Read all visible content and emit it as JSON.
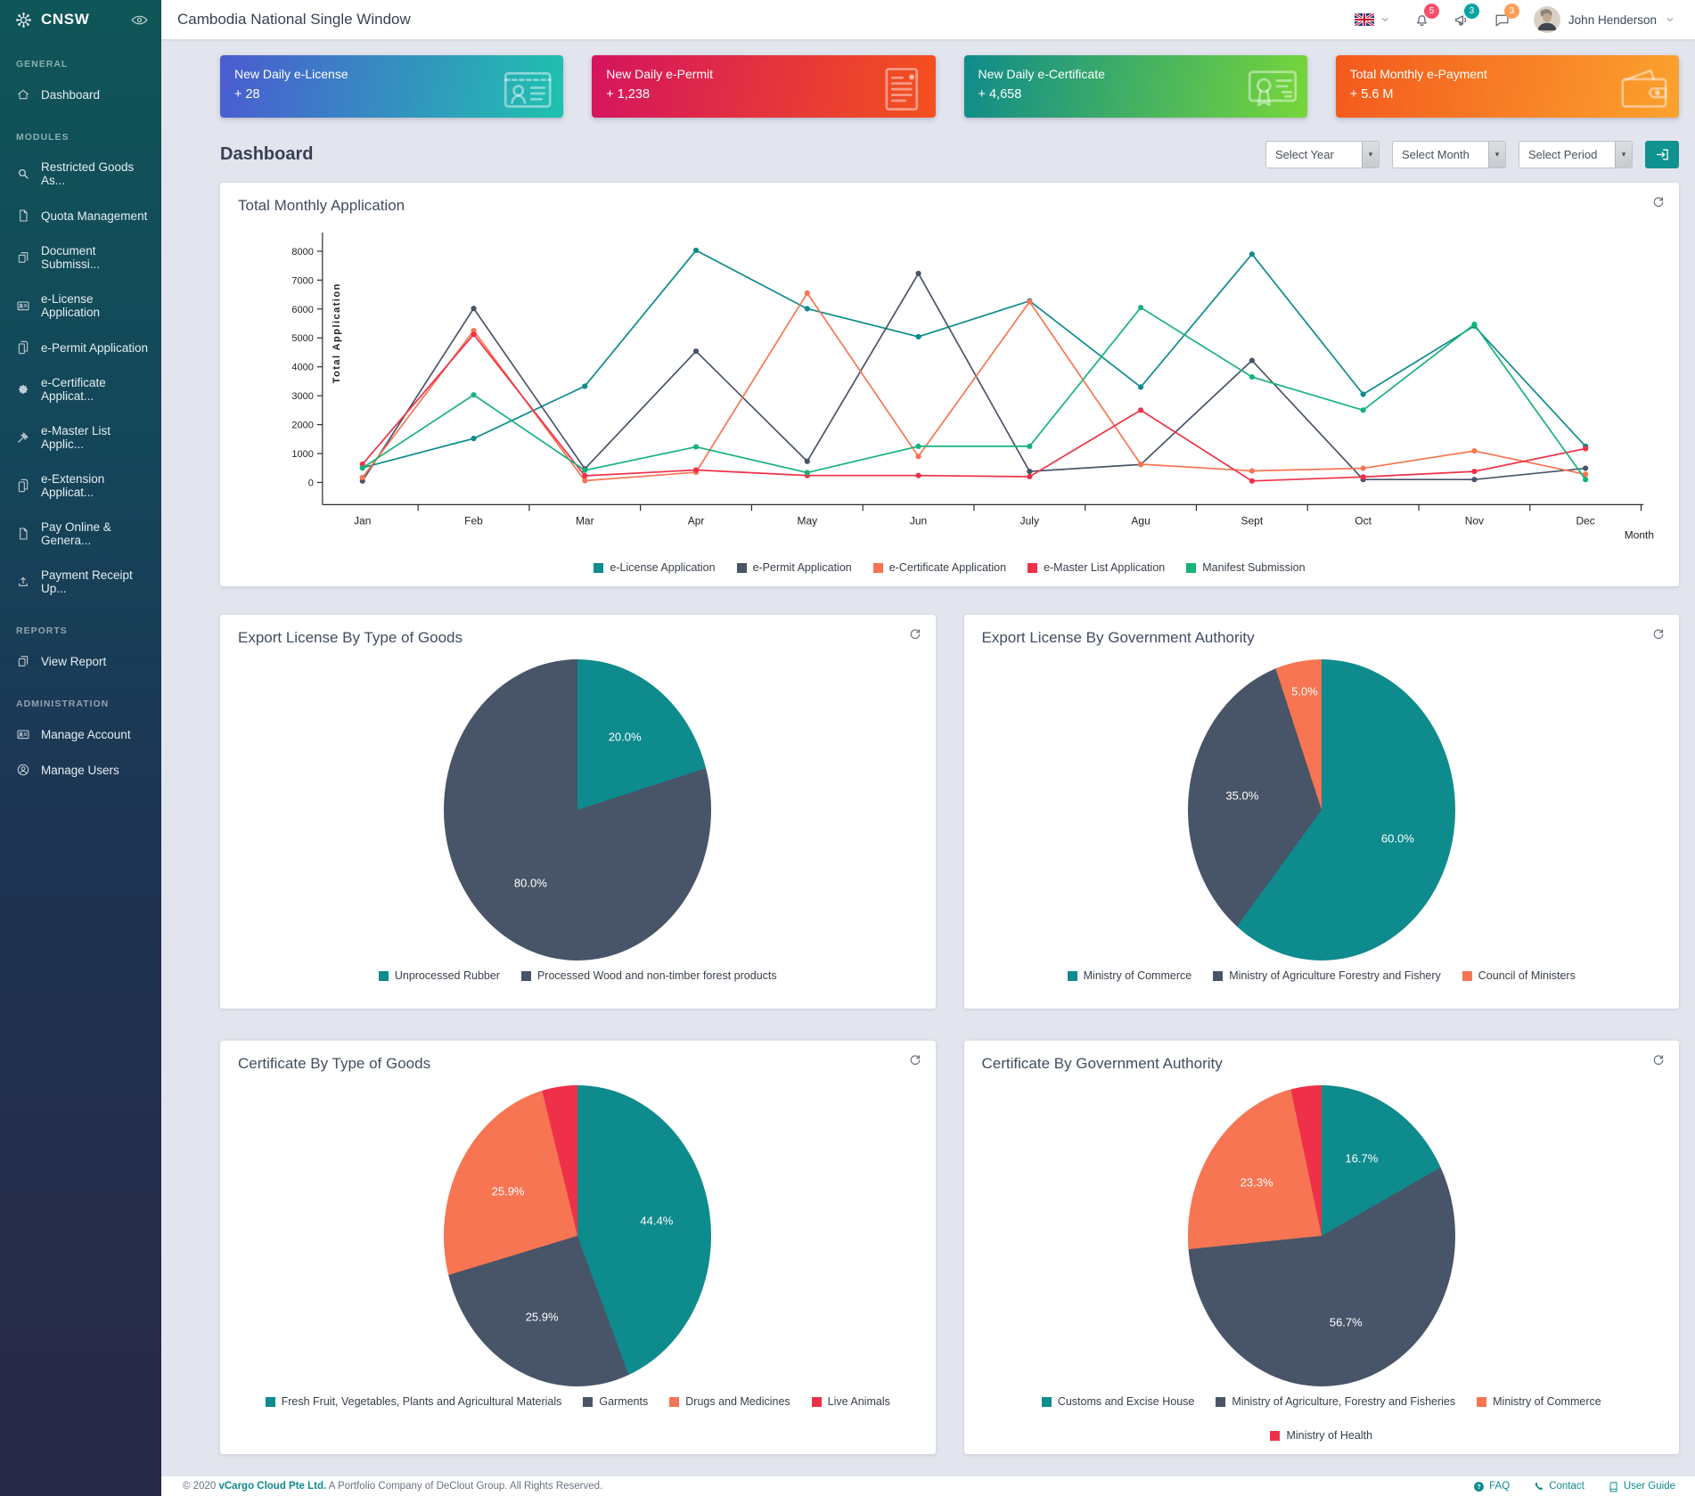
{
  "app": {
    "brand": "CNSW",
    "title": "Cambodia National Single Window",
    "user": "John Henderson"
  },
  "topbar": {
    "badges": {
      "notifications": "5",
      "announcements": "3",
      "messages": "3"
    }
  },
  "sidebar": {
    "sections": [
      {
        "label": "GENERAL",
        "items": [
          {
            "icon": "home-icon",
            "label": "Dashboard"
          }
        ]
      },
      {
        "label": "MODULES",
        "items": [
          {
            "icon": "search-icon",
            "label": "Restricted Goods As..."
          },
          {
            "icon": "file-icon",
            "label": "Quota Management"
          },
          {
            "icon": "copy-icon",
            "label": "Document Submissi..."
          },
          {
            "icon": "id-card-icon",
            "label": "e-License Application"
          },
          {
            "icon": "file-badge-icon",
            "label": "e-Permit Application"
          },
          {
            "icon": "seal-icon",
            "label": "e-Certificate Applicat..."
          },
          {
            "icon": "gavel-icon",
            "label": "e-Master List Applic..."
          },
          {
            "icon": "file-badge-icon",
            "label": "e-Extension Applicat..."
          },
          {
            "icon": "file-icon",
            "label": "Pay Online & Genera..."
          },
          {
            "icon": "upload-icon",
            "label": "Payment Receipt Up..."
          }
        ]
      },
      {
        "label": "REPORTS",
        "items": [
          {
            "icon": "copy-icon",
            "label": "View Report"
          }
        ]
      },
      {
        "label": "ADMINISTRATION",
        "items": [
          {
            "icon": "id-card-icon",
            "label": "Manage Account"
          },
          {
            "icon": "user-circle-icon",
            "label": "Manage Users"
          }
        ]
      }
    ]
  },
  "cards": [
    {
      "title": "New Daily e-License",
      "value": "+ 28",
      "icon": "license-card-icon",
      "gradient": {
        "from": "#4b5bd2",
        "to": "#1fc2ae"
      }
    },
    {
      "title": "New Daily e-Permit",
      "value": "+ 1,238",
      "icon": "permit-doc-icon",
      "gradient": {
        "from": "#d4145f",
        "to": "#f4511e"
      }
    },
    {
      "title": "New Daily e-Certificate",
      "value": "+ 4,658",
      "icon": "certificate-icon",
      "gradient": {
        "from": "#0f8b8b",
        "to": "#77d63a"
      }
    },
    {
      "title": "Total Monthly e-Payment",
      "value": "+ 5.6 M",
      "icon": "wallet-icon",
      "gradient": {
        "from": "#f4591d",
        "to": "#fba22e"
      }
    }
  ],
  "page": {
    "heading": "Dashboard"
  },
  "filters": {
    "year": "Select Year",
    "month": "Select Month",
    "period": "Select Period"
  },
  "chart_data": [
    {
      "type": "line",
      "title": "Total Monthly Application",
      "xlabel": "Month",
      "ylabel": "Total Application",
      "ylim": [
        0,
        8000
      ],
      "yticks": [
        0,
        1000,
        2000,
        3000,
        4000,
        5000,
        6000,
        7000,
        8000
      ],
      "categories": [
        "Jan",
        "Feb",
        "Mar",
        "Apr",
        "May",
        "Jun",
        "July",
        "Agu",
        "Sept",
        "Oct",
        "Nov",
        "Dec"
      ],
      "series": [
        {
          "name": "e-License Application",
          "color": "#0e8b8d",
          "values": [
            510,
            1520,
            3330,
            8030,
            6010,
            5040,
            6280,
            3300,
            7900,
            3050,
            5410,
            1250
          ]
        },
        {
          "name": "e-Permit Application",
          "color": "#485468",
          "values": [
            50,
            6020,
            470,
            4540,
            730,
            7230,
            380,
            620,
            4220,
            100,
            100,
            490
          ]
        },
        {
          "name": "e-Certificate Application",
          "color": "#f77552",
          "values": [
            170,
            5250,
            60,
            350,
            6550,
            900,
            6250,
            630,
            400,
            490,
            1090,
            280
          ]
        },
        {
          "name": "e-Master List Application",
          "color": "#ee3148",
          "values": [
            630,
            5120,
            230,
            430,
            240,
            240,
            200,
            2500,
            50,
            190,
            380,
            1170
          ]
        },
        {
          "name": "Manifest Submission",
          "color": "#16b378",
          "values": [
            500,
            3030,
            420,
            1230,
            340,
            1250,
            1250,
            6050,
            3650,
            2500,
            5470,
            100
          ]
        }
      ]
    },
    {
      "type": "pie",
      "title": "Export License By Type of Goods",
      "slices": [
        {
          "label": "Unprocessed Rubber",
          "value": 20.0,
          "text": "20.0%",
          "color": "#0e8b8d"
        },
        {
          "label": "Processed Wood and non-timber forest products",
          "value": 80.0,
          "text": "80.0%",
          "color": "#485468"
        }
      ]
    },
    {
      "type": "pie",
      "title": "Export License By Government Authority",
      "slices": [
        {
          "label": "Ministry of Commerce",
          "value": 60.0,
          "text": "60.0%",
          "color": "#0e8b8d"
        },
        {
          "label": "Ministry of Agriculture Forestry and Fishery",
          "value": 35.0,
          "text": "35.0%",
          "color": "#485468"
        },
        {
          "label": "Council of Ministers",
          "value": 5.0,
          "text": "5.0%",
          "color": "#f77552"
        }
      ]
    },
    {
      "type": "pie",
      "title": "Certificate By Type of Goods",
      "slices": [
        {
          "label": "Fresh Fruit, Vegetables, Plants and Agricultural Materials",
          "value": 44.4,
          "text": "44.4%",
          "color": "#0e8b8d"
        },
        {
          "label": "Garments",
          "value": 25.9,
          "text": "25.9%",
          "color": "#485468"
        },
        {
          "label": "Drugs and Medicines",
          "value": 25.9,
          "text": "25.9%",
          "color": "#f77552"
        },
        {
          "label": "Live Animals",
          "value": 3.8,
          "text": null,
          "color": "#ee3148"
        }
      ]
    },
    {
      "type": "pie",
      "title": "Certificate By Government Authority",
      "slices": [
        {
          "label": "Customs and Excise House",
          "value": 16.7,
          "text": "16.7%",
          "color": "#0e8b8d"
        },
        {
          "label": "Ministry of Agriculture, Forestry and Fisheries",
          "value": 56.7,
          "text": "56.7%",
          "color": "#485468"
        },
        {
          "label": "Ministry of Commerce",
          "value": 23.3,
          "text": "23.3%",
          "color": "#f77552"
        },
        {
          "label": "Ministry of Health",
          "value": 3.3,
          "text": null,
          "color": "#ee3148"
        }
      ]
    }
  ],
  "footer": {
    "copyright": {
      "prefix": "© 2020",
      "company": "vCargo Cloud Pte Ltd.",
      "suffix": "A Portfolio Company of DeClout Group. All Rights Reserved."
    },
    "links": [
      {
        "icon": "question-icon",
        "label": "FAQ"
      },
      {
        "icon": "phone-icon",
        "label": "Contact"
      },
      {
        "icon": "book-icon",
        "label": "User Guide"
      }
    ]
  }
}
